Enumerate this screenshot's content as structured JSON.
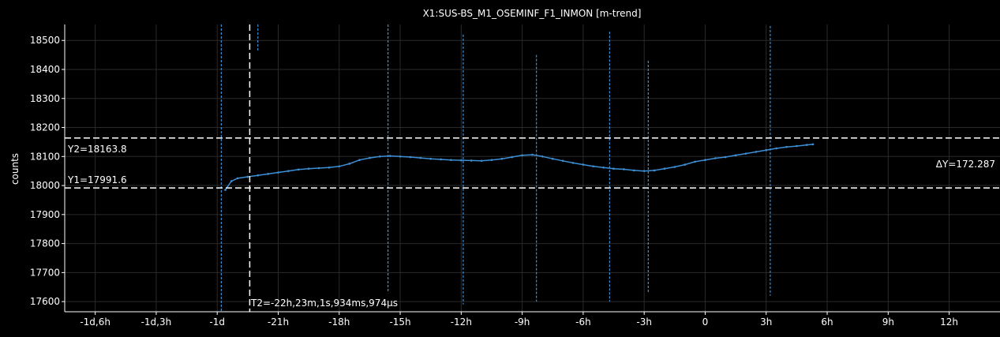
{
  "chart_data": {
    "type": "line",
    "title": "X1:SUS-BS_M1_OSEMINF_F1_INMON [m-trend]",
    "xlabel": "",
    "ylabel": "counts",
    "x_unit": "hours relative to reference",
    "xlim": [
      -31.5,
      14.5
    ],
    "ylim": [
      17565,
      18555
    ],
    "x_ticks": [
      {
        "value": -30,
        "label": "-1d,6h"
      },
      {
        "value": -27,
        "label": "-1d,3h"
      },
      {
        "value": -24,
        "label": "-1d"
      },
      {
        "value": -21,
        "label": "-21h"
      },
      {
        "value": -18,
        "label": "-18h"
      },
      {
        "value": -15,
        "label": "-15h"
      },
      {
        "value": -12,
        "label": "-12h"
      },
      {
        "value": -9,
        "label": "-9h"
      },
      {
        "value": -6,
        "label": "-6h"
      },
      {
        "value": -3,
        "label": "-3h"
      },
      {
        "value": 0,
        "label": "0"
      },
      {
        "value": 3,
        "label": "3h"
      },
      {
        "value": 6,
        "label": "6h"
      },
      {
        "value": 9,
        "label": "9h"
      },
      {
        "value": 12,
        "label": "12h"
      }
    ],
    "y_ticks": [
      17600,
      17700,
      17800,
      17900,
      18000,
      18100,
      18200,
      18300,
      18400,
      18500
    ],
    "grid": true,
    "series": [
      {
        "color": "#3d8fd6",
        "x": [
          -23.6,
          -23.3,
          -23.0,
          -22.5,
          -22.0,
          -21.5,
          -21.0,
          -20.5,
          -20.0,
          -19.5,
          -19.0,
          -18.5,
          -18.0,
          -17.5,
          -17.0,
          -16.5,
          -16.0,
          -15.5,
          -15.0,
          -14.5,
          -14.0,
          -13.5,
          -13.0,
          -12.5,
          -12.0,
          -11.5,
          -11.0,
          -10.5,
          -10.0,
          -9.5,
          -9.0,
          -8.5,
          -8.0,
          -7.5,
          -7.0,
          -6.5,
          -6.0,
          -5.5,
          -5.0,
          -4.5,
          -4.0,
          -3.5,
          -3.0,
          -2.5,
          -2.0,
          -1.5,
          -1.0,
          -0.5,
          0.0,
          0.5,
          1.0,
          1.5,
          2.0,
          2.5,
          3.0,
          3.5,
          4.0,
          4.5,
          5.0,
          5.3
        ],
        "y": [
          17985,
          18015,
          18025,
          18030,
          18035,
          18040,
          18045,
          18050,
          18055,
          18058,
          18060,
          18062,
          18066,
          18075,
          18088,
          18095,
          18100,
          18102,
          18100,
          18098,
          18095,
          18092,
          18090,
          18088,
          18087,
          18086,
          18085,
          18088,
          18092,
          18098,
          18104,
          18106,
          18100,
          18092,
          18085,
          18078,
          18072,
          18066,
          18062,
          18058,
          18056,
          18052,
          18050,
          18052,
          18058,
          18064,
          18072,
          18082,
          18088,
          18094,
          18098,
          18104,
          18110,
          18116,
          18122,
          18128,
          18133,
          18136,
          18140,
          18142
        ]
      }
    ],
    "spikes": [
      {
        "x": -23.8,
        "y_low": 17565,
        "y_high": 18555
      },
      {
        "x": -22.0,
        "y_low": 18460,
        "y_high": 18555
      },
      {
        "x": -15.6,
        "y_low": 17630,
        "y_high": 18555
      },
      {
        "x": -11.9,
        "y_low": 17590,
        "y_high": 18520
      },
      {
        "x": -8.3,
        "y_low": 17600,
        "y_high": 18450
      },
      {
        "x": -4.7,
        "y_low": 17600,
        "y_high": 18530
      },
      {
        "x": -2.8,
        "y_low": 17630,
        "y_high": 18430
      },
      {
        "x": 3.2,
        "y_low": 17620,
        "y_high": 18550
      }
    ],
    "cursors": {
      "y1": {
        "value": 17991.6,
        "label": "Y1=17991.6"
      },
      "y2": {
        "value": 18163.8,
        "label": "Y2=18163.8"
      },
      "delta_y": "ΔY=172.287",
      "t2": {
        "value": -22.4,
        "label": "T2=-22h,23m,1s,934ms,974µs"
      }
    }
  }
}
